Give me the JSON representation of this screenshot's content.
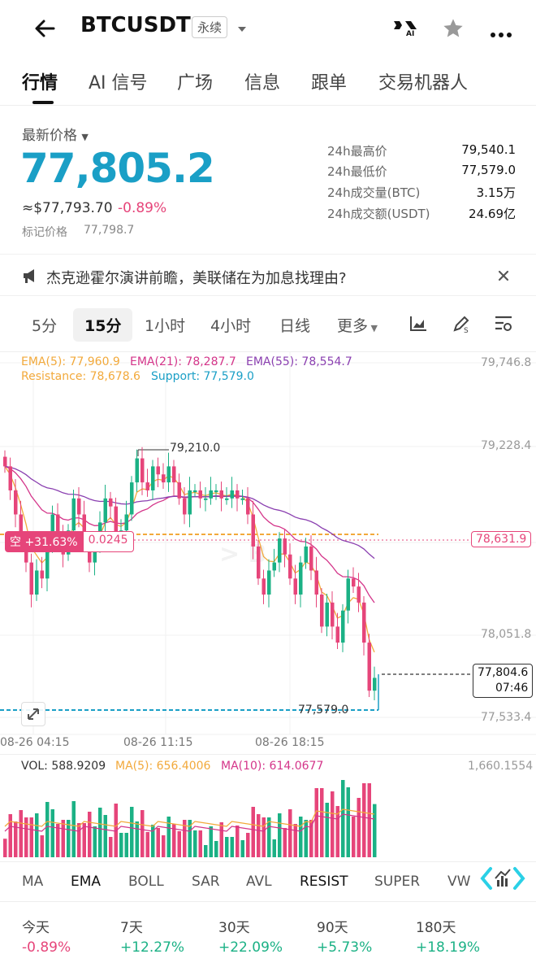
{
  "header": {
    "symbol": "BTCUSDT",
    "contract_type": "永续",
    "icons": [
      "back-arrow-icon",
      "ai-icon",
      "star-icon",
      "more-icon"
    ],
    "ai_icon_label": "AI"
  },
  "tabs": [
    "行情",
    "AI 信号",
    "广场",
    "信息",
    "跟单",
    "交易机器人"
  ],
  "price": {
    "label": "最新价格",
    "last": "77,805.2",
    "usd": "≈$77,793.70",
    "change": "-0.89%",
    "mark_label": "标记价格",
    "mark_value": "77,798.7"
  },
  "stats": [
    {
      "k": "24h最高价",
      "v": "79,540.1"
    },
    {
      "k": "24h最低价",
      "v": "77,579.0"
    },
    {
      "k": "24h成交量(BTC)",
      "v": "3.15万"
    },
    {
      "k": "24h成交额(USDT)",
      "v": "24.69亿"
    }
  ],
  "news": {
    "text": "杰克逊霍尔演讲前瞻，美联储在为加息找理由?"
  },
  "intervals": [
    "5分",
    "15分",
    "1小时",
    "4小时",
    "日线",
    "更多"
  ],
  "indicators_overlay": {
    "ema5": "EMA(5): 77,960.9",
    "ema21": "EMA(21): 78,287.7",
    "ema55": "EMA(55): 78,554.7",
    "resistance": "Resistance: 78,678.6",
    "support": "Support: 77,579.0"
  },
  "chart_overlay": {
    "position_label": "空 +31.63%",
    "position_qty": "0.0245",
    "high_marker": "79,210.0",
    "low_marker": "77,579.0",
    "entry_price": "78,631.9",
    "current_price": "77,804.6",
    "countdown": "07:46"
  },
  "volume_overlay": {
    "vol": "VOL: 588.9209",
    "ma5": "MA(5): 656.4006",
    "ma10": "MA(10): 614.0677",
    "axis_max": "1,660.1554"
  },
  "indicator_tabs": [
    "MA",
    "EMA",
    "BOLL",
    "SAR",
    "AVL",
    "RESIST",
    "SUPER",
    "VW"
  ],
  "performance": [
    {
      "label": "今天",
      "value": "-0.89%"
    },
    {
      "label": "7天",
      "value": "+12.27%"
    },
    {
      "label": "30天",
      "value": "+22.09%"
    },
    {
      "label": "90天",
      "value": "+5.73%"
    },
    {
      "label": "180天",
      "value": "+18.19%"
    }
  ],
  "colors": {
    "up": "#1bb185",
    "down": "#e6457a",
    "accent": "#1a9fc6",
    "ema5": "#f2a93b",
    "ema21": "#d4358a",
    "ema55": "#8a3fb0"
  },
  "chart_data": {
    "type": "candlestick",
    "y_axis_ticks": [
      "79,746.8",
      "79,228.4",
      "78,631.9",
      "78,051.8",
      "77,533.4"
    ],
    "x_axis_ticks": [
      "08-26 04:15",
      "08-26 11:15",
      "08-26 18:15"
    ],
    "ylim": [
      77533.4,
      79746.8
    ],
    "resistance": 78678.6,
    "support": 77579.0,
    "candles_close": [
      79100,
      78950,
      78800,
      78650,
      78500,
      78300,
      78450,
      78400,
      78600,
      78800,
      78650,
      78550,
      78700,
      78900,
      78800,
      78650,
      78500,
      78600,
      78750,
      78900,
      78850,
      78650,
      78700,
      78800,
      79000,
      79150,
      79000,
      78950,
      79100,
      79050,
      79000,
      79100,
      79000,
      78900,
      78800,
      78950,
      78950,
      78900,
      78900,
      78950,
      78950,
      78900,
      78900,
      78950,
      78900,
      78900,
      78800,
      78600,
      78400,
      78300,
      78450,
      78500,
      78650,
      78550,
      78400,
      78300,
      78500,
      78600,
      78450,
      78300,
      78100,
      78250,
      78100,
      78000,
      78200,
      78400,
      78350,
      78250,
      78000,
      77700,
      77780
    ]
  }
}
